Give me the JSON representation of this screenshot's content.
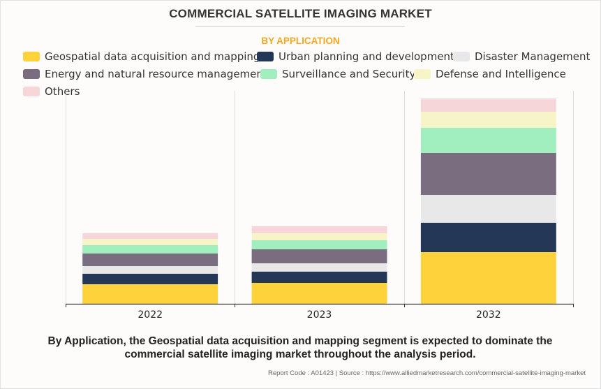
{
  "title": "COMMERCIAL SATELLITE IMAGING MARKET",
  "subtitle": "BY APPLICATION",
  "legend": [
    {
      "label": "Geospatial data acquisition and mapping",
      "color": "#fdd23a"
    },
    {
      "label": "Urban planning and development",
      "color": "#243757"
    },
    {
      "label": "Disaster Management",
      "color": "#e8e8e8"
    },
    {
      "label": "Energy and natural resource management",
      "color": "#7b6d80"
    },
    {
      "label": "Surveillance and Security",
      "color": "#a1efbe"
    },
    {
      "label": "Defense and Intelligence",
      "color": "#f7f5c7"
    },
    {
      "label": "Others",
      "color": "#f6d6d9"
    }
  ],
  "chart_data": {
    "type": "bar",
    "stacked": true,
    "title": "COMMERCIAL SATELLITE IMAGING MARKET",
    "subtitle": "BY APPLICATION",
    "xlabel": "",
    "ylabel": "",
    "categories": [
      "2022",
      "2023",
      "2032"
    ],
    "ylim": [
      0,
      30.5
    ],
    "grid": "vertical",
    "legend_position": "top",
    "value_units": "relative (no axis values shown)",
    "series": [
      {
        "name": "Geospatial data acquisition and mapping",
        "color": "#fdd23a",
        "values": [
          2.8,
          3.0,
          7.4
        ]
      },
      {
        "name": "Urban planning and development",
        "color": "#243757",
        "values": [
          1.5,
          1.6,
          4.2
        ]
      },
      {
        "name": "Disaster Management",
        "color": "#e8e8e8",
        "values": [
          1.1,
          1.2,
          4.0
        ]
      },
      {
        "name": "Energy and natural resource management",
        "color": "#7b6d80",
        "values": [
          1.8,
          2.0,
          6.0
        ]
      },
      {
        "name": "Surveillance and Security",
        "color": "#a1efbe",
        "values": [
          1.2,
          1.3,
          3.6
        ]
      },
      {
        "name": "Defense and Intelligence",
        "color": "#f7f5c7",
        "values": [
          0.9,
          1.0,
          2.3
        ]
      },
      {
        "name": "Others",
        "color": "#f6d6d9",
        "values": [
          0.8,
          1.0,
          1.9
        ]
      }
    ]
  },
  "caption": "By Application, the Geospatial data acquisition and mapping segment is expected to dominate the commercial satellite imaging market throughout the analysis period.",
  "source": "Report Code : A01423  |  Source : https://www.alliedmarketresearch.com/commercial-satellite-imaging-market"
}
